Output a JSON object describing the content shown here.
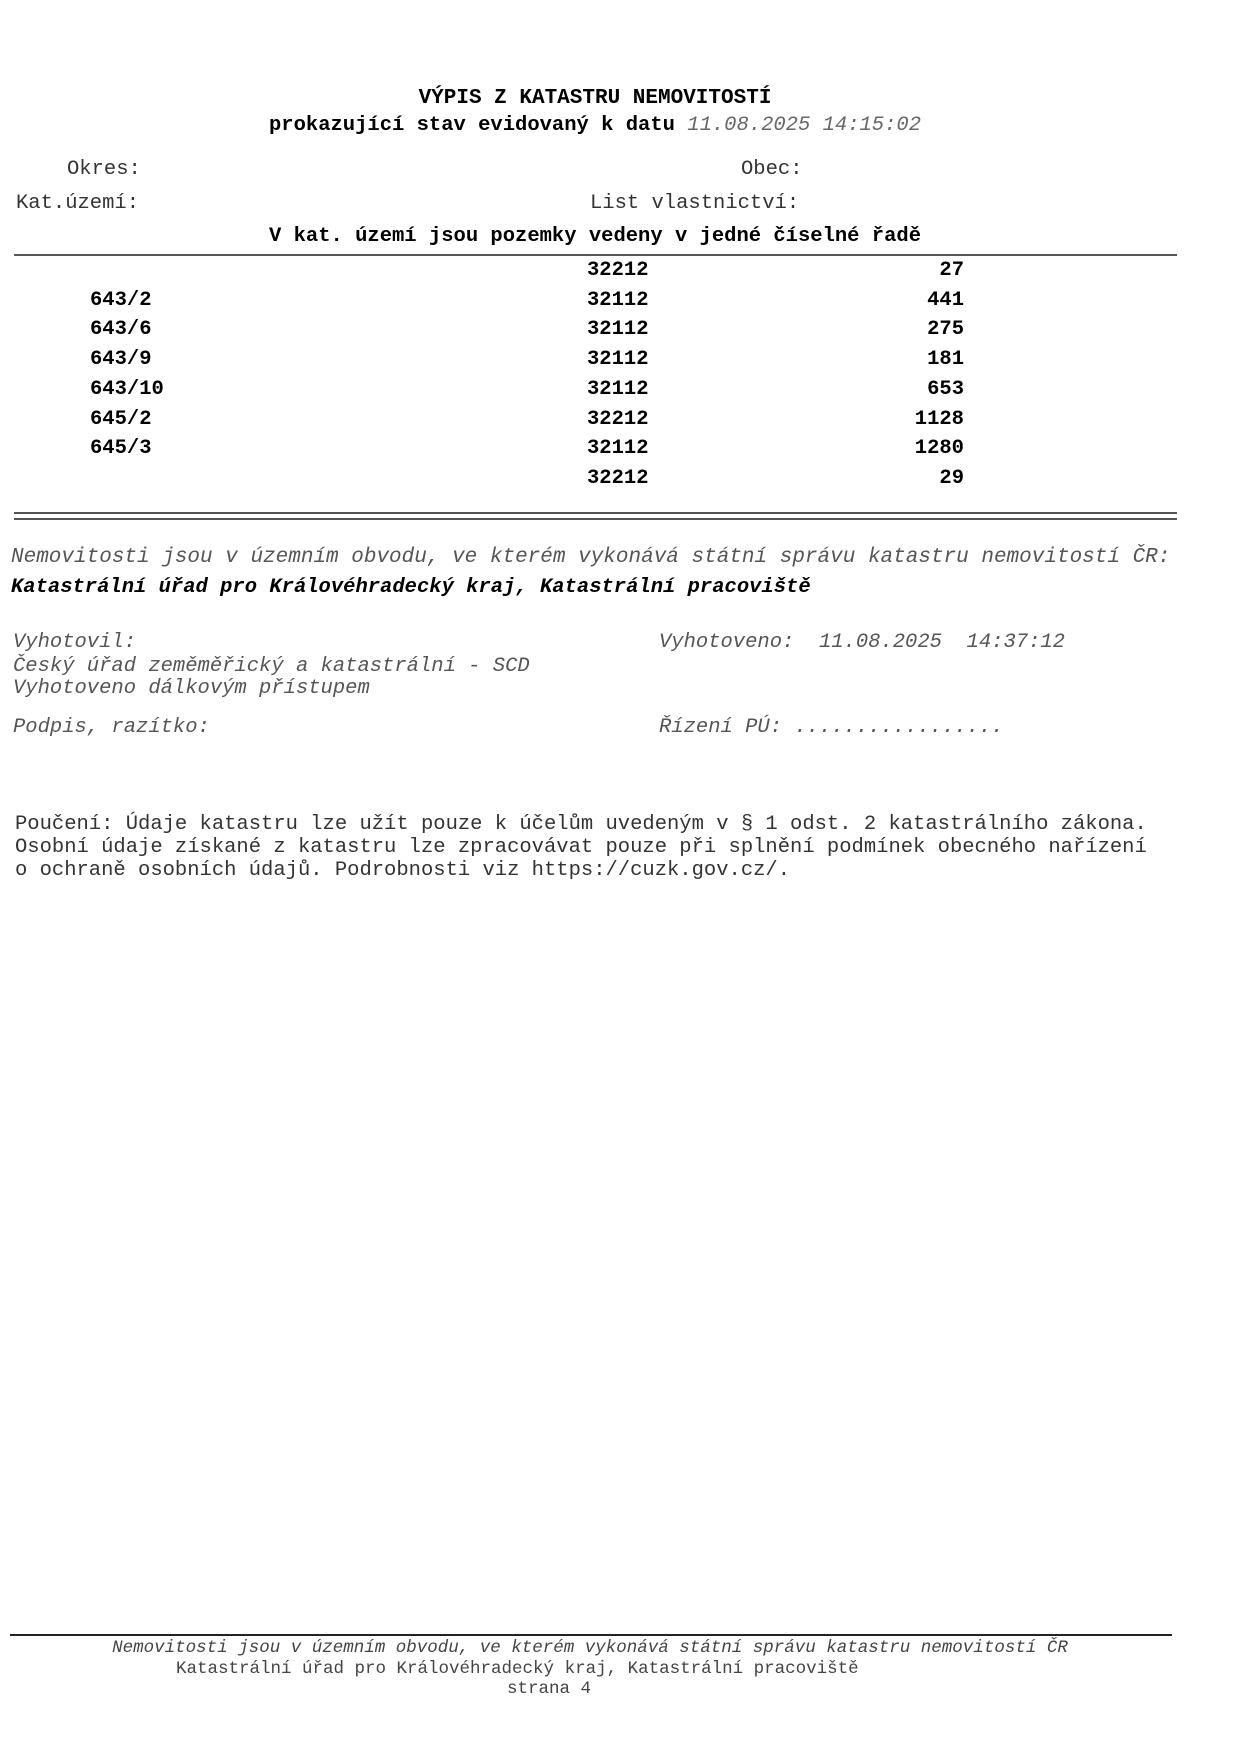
{
  "header": {
    "title": "VÝPIS Z KATASTRU NEMOVITOSTÍ",
    "subtitle_prefix": "prokazující stav evidovaný k datu",
    "subtitle_date": "11.08.2025 14:15:02"
  },
  "fields": {
    "okres_label": "Okres:",
    "obec_label": "Obec:",
    "kat_uzemi_label": "Kat.území:",
    "list_vlastnictvi_label": "List vlastnictví:"
  },
  "section_title": "V kat. území jsou pozemky vedeny v jedné číselné řadě",
  "parcels": [
    {
      "parcel": "",
      "code": "32212",
      "area": "27"
    },
    {
      "parcel": "643/2",
      "code": "32112",
      "area": "441"
    },
    {
      "parcel": "643/6",
      "code": "32112",
      "area": "275"
    },
    {
      "parcel": "643/9",
      "code": "32112",
      "area": "181"
    },
    {
      "parcel": "643/10",
      "code": "32112",
      "area": "653"
    },
    {
      "parcel": "645/2",
      "code": "32212",
      "area": "1128"
    },
    {
      "parcel": "645/3",
      "code": "32112",
      "area": "1280"
    },
    {
      "parcel": "",
      "code": "32212",
      "area": "29"
    }
  ],
  "office": {
    "intro": "Nemovitosti jsou v územním obvodu, ve kterém vykonává státní správu katastru nemovitostí ČR:",
    "name": "Katastrální úřad pro Královéhradecký kraj, Katastrální pracoviště"
  },
  "issuance": {
    "vyhotovil_label": "Vyhotovil:",
    "vyhotovil_value": "Český úřad zeměměřický a katastrální - SCD",
    "remote_note": "Vyhotoveno dálkovým přístupem",
    "vyhotoveno_label": "Vyhotoveno:",
    "vyhotoveno_value": "11.08.2025  14:37:12",
    "signature_label": "Podpis, razítko:",
    "rizeni_label": "Řízení PÚ:",
    "rizeni_value": "................."
  },
  "notice": [
    "Poučení: Údaje katastru lze užít pouze k účelům uvedeným v § 1 odst. 2 katastrálního zákona.",
    "Osobní údaje získané z katastru lze zpracovávat pouze při splnění podmínek obecného nařízení",
    "o ochraně osobních údajů. Podrobnosti viz https://cuzk.gov.cz/."
  ],
  "footer": {
    "line1": "Nemovitosti jsou v územním obvodu, ve kterém vykonává státní správu katastru nemovitostí ČR",
    "line2": "Katastrální úřad pro Královéhradecký kraj, Katastrální pracoviště",
    "page": "strana 4"
  }
}
